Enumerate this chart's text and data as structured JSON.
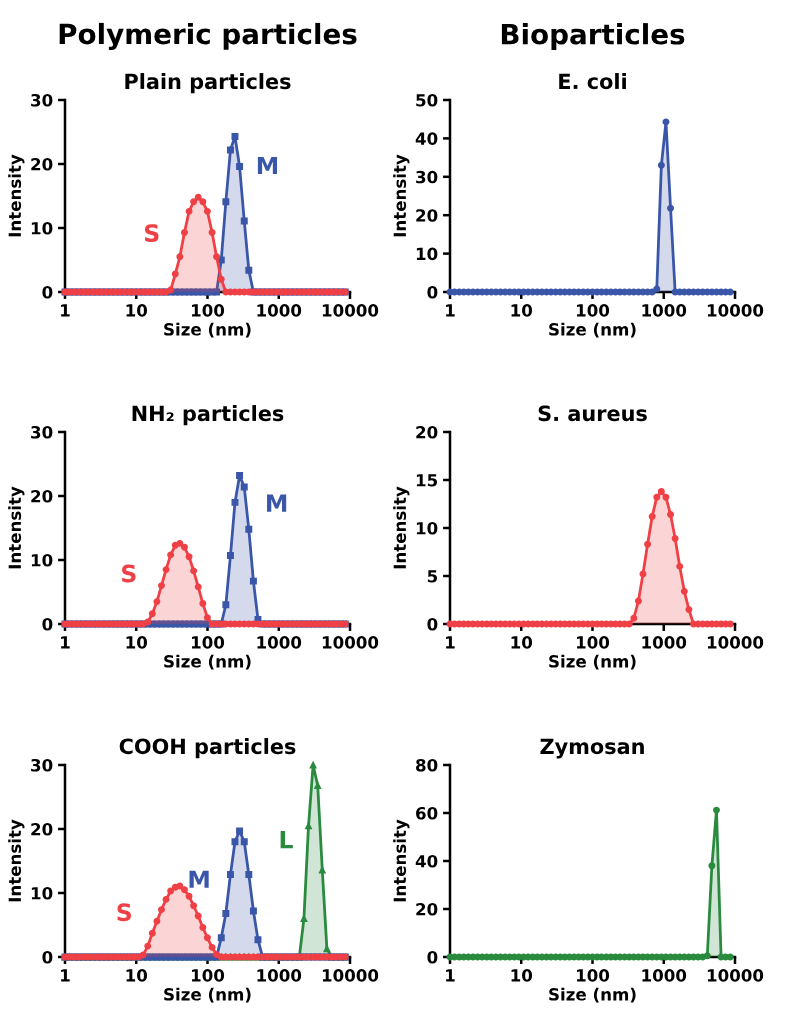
{
  "chart_data": [
    {
      "type": "area",
      "title": "Plain particles",
      "xlabel": "Size (nm)",
      "ylabel": "Intensity",
      "log": "x",
      "xlim": [
        1,
        10000
      ],
      "xticks": [
        1,
        10,
        100,
        1000,
        10000
      ],
      "ylim": [
        0,
        30
      ],
      "yticks": [
        0,
        10,
        20,
        30
      ],
      "legend": false,
      "grid": false,
      "annotations": [
        "Polymeric particles"
      ],
      "x": [
        1,
        1.16,
        1.35,
        1.56,
        1.81,
        2.1,
        2.44,
        2.83,
        3.28,
        3.8,
        4.41,
        5.12,
        5.94,
        6.89,
        7.99,
        9.27,
        10.8,
        12.5,
        14.5,
        16.8,
        19.5,
        22.6,
        26.2,
        30.4,
        35.3,
        40.9,
        47.5,
        55.1,
        63.9,
        74.1,
        86,
        99.7,
        116,
        134,
        156,
        181,
        210,
        243,
        282,
        328,
        380,
        441,
        511,
        593,
        688,
        798,
        926,
        1074,
        1246,
        1445,
        1676,
        1945,
        2256,
        2617,
        3036,
        3521,
        4085,
        4738,
        5496,
        6376,
        7396,
        8579
      ],
      "series": [
        {
          "name": "S",
          "color": "#ef4046",
          "marker": "circle",
          "values": [
            0,
            0,
            0,
            0,
            0,
            0,
            0,
            0,
            0,
            0,
            0,
            0,
            0,
            0,
            0,
            0,
            0,
            0,
            0,
            0,
            0,
            0,
            0,
            0.3,
            2.8,
            5.5,
            9.3,
            12.6,
            14.1,
            14.8,
            14.1,
            12.6,
            9.3,
            5.5,
            2.0,
            0,
            0,
            0,
            0,
            0,
            0,
            0,
            0,
            0,
            0,
            0,
            0,
            0,
            0,
            0,
            0,
            0,
            0,
            0,
            0,
            0,
            0,
            0,
            0,
            0,
            0,
            0
          ]
        },
        {
          "name": "M",
          "color": "#3a56a8",
          "marker": "square",
          "values": [
            0,
            0,
            0,
            0,
            0,
            0,
            0,
            0,
            0,
            0,
            0,
            0,
            0,
            0,
            0,
            0,
            0,
            0,
            0,
            0,
            0,
            0,
            0,
            0,
            0,
            0,
            0,
            0,
            0,
            0,
            0,
            0,
            0,
            0,
            5.0,
            14.1,
            22.2,
            24.3,
            19.6,
            11.1,
            3.4,
            0,
            0,
            0,
            0,
            0,
            0,
            0,
            0,
            0,
            0,
            0,
            0,
            0,
            0,
            0,
            0,
            0,
            0,
            0,
            0,
            0
          ]
        }
      ]
    },
    {
      "type": "area",
      "title": "E. coli",
      "xlabel": "Size (nm)",
      "ylabel": "Intensity",
      "log": "x",
      "xlim": [
        1,
        10000
      ],
      "xticks": [
        1,
        10,
        100,
        1000,
        10000
      ],
      "ylim": [
        0,
        50
      ],
      "yticks": [
        0,
        10,
        20,
        30,
        40,
        50
      ],
      "legend": false,
      "grid": false,
      "annotations": [
        "Bioparticles"
      ],
      "x": [
        1,
        1.16,
        1.35,
        1.56,
        1.81,
        2.1,
        2.44,
        2.83,
        3.28,
        3.8,
        4.41,
        5.12,
        5.94,
        6.89,
        7.99,
        9.27,
        10.8,
        12.5,
        14.5,
        16.8,
        19.5,
        22.6,
        26.2,
        30.4,
        35.3,
        40.9,
        47.5,
        55.1,
        63.9,
        74.1,
        86,
        99.7,
        116,
        134,
        156,
        181,
        210,
        243,
        282,
        328,
        380,
        441,
        511,
        593,
        688,
        798,
        926,
        1074,
        1246,
        1445,
        1676,
        1945,
        2256,
        2617,
        3036,
        3521,
        4085,
        4738,
        5496,
        6376,
        7396,
        8579
      ],
      "series": [
        {
          "color": "#3a56a8",
          "marker": "circle",
          "values": [
            0,
            0,
            0,
            0,
            0,
            0,
            0,
            0,
            0,
            0,
            0,
            0,
            0,
            0,
            0,
            0,
            0,
            0,
            0,
            0,
            0,
            0,
            0,
            0,
            0,
            0,
            0,
            0,
            0,
            0,
            0,
            0,
            0,
            0,
            0,
            0,
            0,
            0,
            0,
            0,
            0,
            0,
            0,
            0,
            0,
            0.8,
            33,
            44.3,
            21.8,
            0,
            0,
            0,
            0,
            0,
            0,
            0,
            0,
            0,
            0,
            0,
            0,
            0
          ]
        }
      ]
    },
    {
      "type": "area",
      "title": "NH₂ particles",
      "xlabel": "Size (nm)",
      "ylabel": "Intensity",
      "log": "x",
      "xlim": [
        1,
        10000
      ],
      "xticks": [
        1,
        10,
        100,
        1000,
        10000
      ],
      "ylim": [
        0,
        30
      ],
      "yticks": [
        0,
        10,
        20,
        30
      ],
      "legend": false,
      "grid": false,
      "x": [
        1,
        1.16,
        1.35,
        1.56,
        1.81,
        2.1,
        2.44,
        2.83,
        3.28,
        3.8,
        4.41,
        5.12,
        5.94,
        6.89,
        7.99,
        9.27,
        10.8,
        12.5,
        14.5,
        16.8,
        19.5,
        22.6,
        26.2,
        30.4,
        35.3,
        40.9,
        47.5,
        55.1,
        63.9,
        74.1,
        86,
        99.7,
        116,
        134,
        156,
        181,
        210,
        243,
        282,
        328,
        380,
        441,
        511,
        593,
        688,
        798,
        926,
        1074,
        1246,
        1445,
        1676,
        1945,
        2256,
        2617,
        3036,
        3521,
        4085,
        4738,
        5496,
        6376,
        7396,
        8579
      ],
      "series": [
        {
          "name": "S",
          "color": "#ef4046",
          "marker": "circle",
          "values": [
            0,
            0,
            0,
            0,
            0,
            0,
            0,
            0,
            0,
            0,
            0,
            0,
            0,
            0,
            0,
            0,
            0,
            0,
            0.3,
            1.6,
            3.5,
            6.0,
            8.5,
            10.8,
            12.3,
            12.6,
            12.0,
            10.5,
            8.3,
            5.8,
            3.2,
            1.0,
            0,
            0,
            0,
            0,
            0,
            0,
            0,
            0,
            0,
            0,
            0,
            0,
            0,
            0,
            0,
            0,
            0,
            0,
            0,
            0,
            0,
            0,
            0,
            0,
            0,
            0,
            0,
            0,
            0,
            0
          ]
        },
        {
          "name": "M",
          "color": "#3a56a8",
          "marker": "square",
          "values": [
            0,
            0,
            0,
            0,
            0,
            0,
            0,
            0,
            0,
            0,
            0,
            0,
            0,
            0,
            0,
            0,
            0,
            0,
            0,
            0,
            0,
            0,
            0,
            0,
            0,
            0,
            0,
            0,
            0,
            0,
            0,
            0,
            0,
            0,
            0,
            3.0,
            10.7,
            19.0,
            23.2,
            21.4,
            14.8,
            6.7,
            0.7,
            0,
            0,
            0,
            0,
            0,
            0,
            0,
            0,
            0,
            0,
            0,
            0,
            0,
            0,
            0,
            0,
            0,
            0,
            0
          ]
        }
      ]
    },
    {
      "type": "area",
      "title": "S. aureus",
      "xlabel": "Size (nm)",
      "ylabel": "Intensity",
      "log": "x",
      "xlim": [
        1,
        10000
      ],
      "xticks": [
        1,
        10,
        100,
        1000,
        10000
      ],
      "ylim": [
        0,
        20
      ],
      "yticks": [
        0,
        5,
        10,
        15,
        20
      ],
      "legend": false,
      "grid": false,
      "x": [
        1,
        1.16,
        1.35,
        1.56,
        1.81,
        2.1,
        2.44,
        2.83,
        3.28,
        3.8,
        4.41,
        5.12,
        5.94,
        6.89,
        7.99,
        9.27,
        10.8,
        12.5,
        14.5,
        16.8,
        19.5,
        22.6,
        26.2,
        30.4,
        35.3,
        40.9,
        47.5,
        55.1,
        63.9,
        74.1,
        86,
        99.7,
        116,
        134,
        156,
        181,
        210,
        243,
        282,
        328,
        380,
        441,
        511,
        593,
        688,
        798,
        926,
        1074,
        1246,
        1445,
        1676,
        1945,
        2256,
        2617,
        3036,
        3521,
        4085,
        4738,
        5496,
        6376,
        7396,
        8579
      ],
      "series": [
        {
          "color": "#ef4046",
          "marker": "circle",
          "values": [
            0,
            0,
            0,
            0,
            0,
            0,
            0,
            0,
            0,
            0,
            0,
            0,
            0,
            0,
            0,
            0,
            0,
            0,
            0,
            0,
            0,
            0,
            0,
            0,
            0,
            0,
            0,
            0,
            0,
            0,
            0,
            0,
            0,
            0,
            0,
            0,
            0,
            0,
            0,
            0,
            0.6,
            2.4,
            5.2,
            8.3,
            11.2,
            13.2,
            13.8,
            13.2,
            11.4,
            8.9,
            6.0,
            3.4,
            1.5,
            0,
            0,
            0,
            0,
            0,
            0,
            0,
            0,
            0
          ]
        }
      ]
    },
    {
      "type": "area",
      "title": "COOH particles",
      "xlabel": "Size (nm)",
      "ylabel": "Intensity",
      "log": "x",
      "xlim": [
        1,
        10000
      ],
      "xticks": [
        1,
        10,
        100,
        1000,
        10000
      ],
      "ylim": [
        0,
        30
      ],
      "yticks": [
        0,
        10,
        20,
        30
      ],
      "legend": false,
      "grid": false,
      "x": [
        1,
        1.16,
        1.35,
        1.56,
        1.81,
        2.1,
        2.44,
        2.83,
        3.28,
        3.8,
        4.41,
        5.12,
        5.94,
        6.89,
        7.99,
        9.27,
        10.8,
        12.5,
        14.5,
        16.8,
        19.5,
        22.6,
        26.2,
        30.4,
        35.3,
        40.9,
        47.5,
        55.1,
        63.9,
        74.1,
        86,
        99.7,
        116,
        134,
        156,
        181,
        210,
        243,
        282,
        328,
        380,
        441,
        511,
        593,
        688,
        798,
        926,
        1074,
        1246,
        1445,
        1676,
        1945,
        2256,
        2617,
        3036,
        3521,
        4085,
        4738,
        5496,
        6376,
        7396,
        8579
      ],
      "series": [
        {
          "name": "S",
          "color": "#ef4046",
          "marker": "circle",
          "values": [
            0,
            0,
            0,
            0,
            0,
            0,
            0,
            0,
            0,
            0,
            0,
            0,
            0,
            0,
            0,
            0,
            0,
            0.3,
            1.7,
            3.7,
            5.6,
            7.4,
            9.0,
            10.3,
            10.9,
            11.1,
            10.5,
            9.5,
            8.0,
            6.4,
            4.6,
            3.0,
            1.5,
            0.4,
            0,
            0,
            0,
            0,
            0,
            0,
            0,
            0,
            0,
            0,
            0,
            0,
            0,
            0,
            0,
            0,
            0,
            0,
            0,
            0,
            0,
            0,
            0,
            0,
            0,
            0,
            0,
            0
          ]
        },
        {
          "name": "M",
          "color": "#3a56a8",
          "marker": "square",
          "values": [
            0,
            0,
            0,
            0,
            0,
            0,
            0,
            0,
            0,
            0,
            0,
            0,
            0,
            0,
            0,
            0,
            0,
            0,
            0,
            0,
            0,
            0,
            0,
            0,
            0,
            0,
            0,
            0,
            0,
            0,
            0,
            0,
            0,
            0,
            3.0,
            6.8,
            12.9,
            18.0,
            19.7,
            18.0,
            12.9,
            7.2,
            2.7,
            0,
            0,
            0,
            0,
            0,
            0,
            0,
            0,
            0,
            0,
            0,
            0,
            0,
            0,
            0,
            0,
            0,
            0,
            0
          ]
        },
        {
          "name": "L",
          "color": "#2a8a3e",
          "marker": "triangle",
          "values": [
            0,
            0,
            0,
            0,
            0,
            0,
            0,
            0,
            0,
            0,
            0,
            0,
            0,
            0,
            0,
            0,
            0,
            0,
            0,
            0,
            0,
            0,
            0,
            0,
            0,
            0,
            0,
            0,
            0,
            0,
            0,
            0,
            0,
            0,
            0,
            0,
            0,
            0,
            0,
            0,
            0,
            0,
            0,
            0,
            0,
            0,
            0,
            0,
            0,
            0,
            0,
            0,
            6.0,
            20.5,
            30,
            26.8,
            13.6,
            1.3,
            0,
            0,
            0,
            0
          ]
        }
      ]
    },
    {
      "type": "area",
      "title": "Zymosan",
      "xlabel": "Size (nm)",
      "ylabel": "Intensity",
      "log": "x",
      "xlim": [
        1,
        10000
      ],
      "xticks": [
        1,
        10,
        100,
        1000,
        10000
      ],
      "ylim": [
        0,
        80
      ],
      "yticks": [
        0,
        20,
        40,
        60,
        80
      ],
      "legend": false,
      "grid": false,
      "x": [
        1,
        1.16,
        1.35,
        1.56,
        1.81,
        2.1,
        2.44,
        2.83,
        3.28,
        3.8,
        4.41,
        5.12,
        5.94,
        6.89,
        7.99,
        9.27,
        10.8,
        12.5,
        14.5,
        16.8,
        19.5,
        22.6,
        26.2,
        30.4,
        35.3,
        40.9,
        47.5,
        55.1,
        63.9,
        74.1,
        86,
        99.7,
        116,
        134,
        156,
        181,
        210,
        243,
        282,
        328,
        380,
        441,
        511,
        593,
        688,
        798,
        926,
        1074,
        1246,
        1445,
        1676,
        1945,
        2256,
        2617,
        3036,
        3521,
        4085,
        4738,
        5496,
        6376,
        7396,
        8579
      ],
      "series": [
        {
          "color": "#2a8a3e",
          "marker": "circle",
          "values": [
            0,
            0,
            0,
            0,
            0,
            0,
            0,
            0,
            0,
            0,
            0,
            0,
            0,
            0,
            0,
            0,
            0,
            0,
            0,
            0,
            0,
            0,
            0,
            0,
            0,
            0,
            0,
            0,
            0,
            0,
            0,
            0,
            0,
            0,
            0,
            0,
            0,
            0,
            0,
            0,
            0,
            0,
            0,
            0,
            0,
            0,
            0,
            0,
            0,
            0,
            0,
            0,
            0,
            0,
            0,
            0,
            0.5,
            38,
            61.2,
            0,
            0,
            0
          ]
        }
      ]
    }
  ]
}
